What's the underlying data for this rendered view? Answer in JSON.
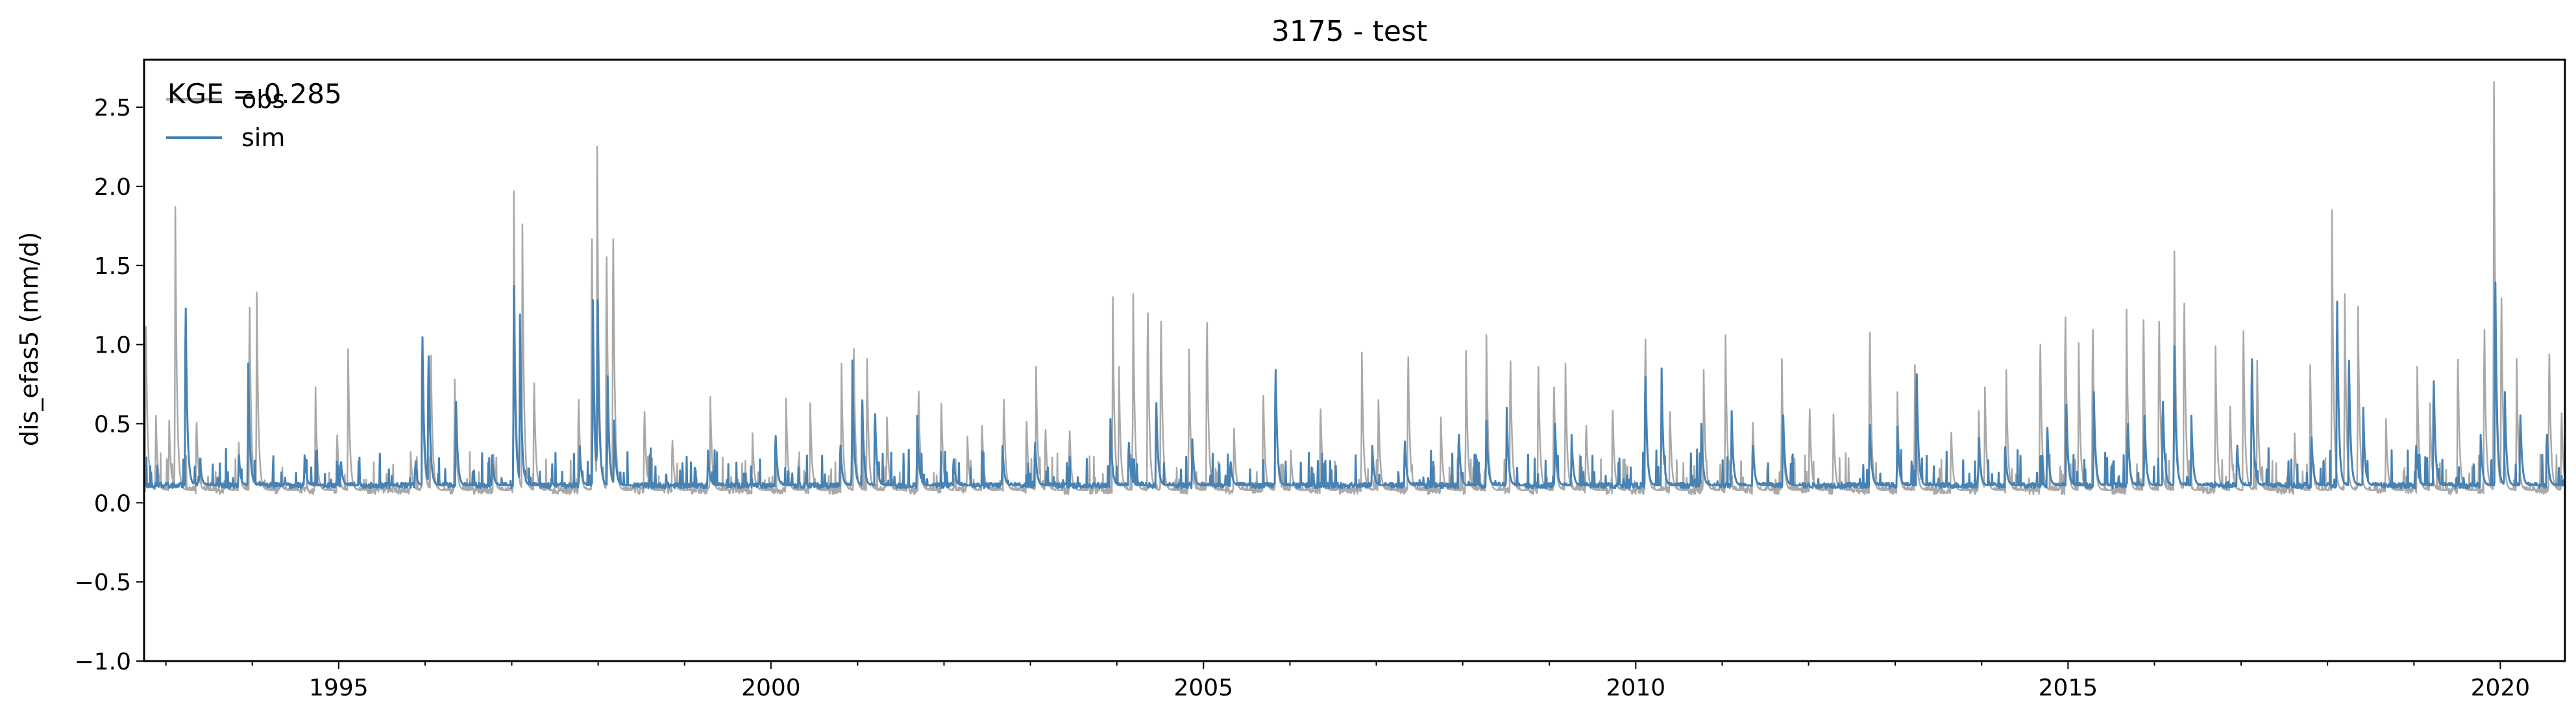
{
  "chart_data": {
    "type": "line",
    "title": "3175 - test",
    "xlabel": "",
    "ylabel": "dis_efas5 (mm/d)",
    "annotation": "KGE = 0.285",
    "xlim": [
      "1992-10-01",
      "2020-09-30"
    ],
    "ylim": [
      -1.0,
      2.8
    ],
    "x_ticks": [
      "1995",
      "2000",
      "2005",
      "2010",
      "2015",
      "2020"
    ],
    "y_ticks": [
      "−1.0",
      "−0.5",
      "0.0",
      "0.5",
      "1.0",
      "1.5",
      "2.0",
      "2.5"
    ],
    "y_tick_values": [
      -1.0,
      -0.5,
      0.0,
      0.5,
      1.0,
      1.5,
      2.0,
      2.5
    ],
    "grid": false,
    "legend": {
      "placement": "top-left",
      "entries": [
        "obs",
        "sim"
      ]
    },
    "series": [
      {
        "name": "obs",
        "color": "#a9a9a9",
        "baseline": 0.08,
        "peaks": [
          [
            "1992-10-08",
            1.27
          ],
          [
            "1992-11-20",
            0.55
          ],
          [
            "1993-01-15",
            0.52
          ],
          [
            "1993-02-10",
            1.87
          ],
          [
            "1993-05-10",
            0.57
          ],
          [
            "1993-09-05",
            0.15
          ],
          [
            "1993-11-05",
            0.38
          ],
          [
            "1993-12-20",
            1.41
          ],
          [
            "1994-01-20",
            1.33
          ],
          [
            "1994-05-01",
            0.14
          ],
          [
            "1994-09-25",
            0.73
          ],
          [
            "1994-12-25",
            0.48
          ],
          [
            "1995-02-10",
            0.97
          ],
          [
            "1995-11-01",
            0.32
          ],
          [
            "1995-12-20",
            0.96
          ],
          [
            "1996-01-25",
            1.06
          ],
          [
            "1996-05-05",
            0.78
          ],
          [
            "1996-10-15",
            0.34
          ],
          [
            "1997-01-10",
            1.97
          ],
          [
            "1997-02-15",
            1.76
          ],
          [
            "1997-04-05",
            0.86
          ],
          [
            "1997-10-10",
            0.74
          ],
          [
            "1997-12-05",
            1.91
          ],
          [
            "1997-12-28",
            2.25
          ],
          [
            "1998-02-05",
            1.78
          ],
          [
            "1998-03-05",
            1.91
          ],
          [
            "1998-07-15",
            0.65
          ],
          [
            "1998-11-10",
            0.44
          ],
          [
            "1999-04-20",
            0.67
          ],
          [
            "1999-10-15",
            0.44
          ],
          [
            "2000-03-05",
            0.66
          ],
          [
            "2000-06-15",
            0.63
          ],
          [
            "2000-10-25",
            0.88
          ],
          [
            "2000-12-15",
            1.11
          ],
          [
            "2001-02-10",
            0.91
          ],
          [
            "2001-05-05",
            0.54
          ],
          [
            "2001-09-15",
            0.8
          ],
          [
            "2001-12-20",
            0.71
          ],
          [
            "2002-04-10",
            0.42
          ],
          [
            "2002-06-10",
            0.55
          ],
          [
            "2002-09-10",
            0.74
          ],
          [
            "2002-12-15",
            0.58
          ],
          [
            "2003-01-25",
            0.86
          ],
          [
            "2003-03-05",
            0.52
          ],
          [
            "2003-06-15",
            0.51
          ],
          [
            "2003-12-15",
            1.3
          ],
          [
            "2004-01-10",
            0.86
          ],
          [
            "2004-03-10",
            1.32
          ],
          [
            "2004-05-10",
            1.37
          ],
          [
            "2004-07-05",
            1.31
          ],
          [
            "2004-11-01",
            0.97
          ],
          [
            "2005-01-15",
            1.3
          ],
          [
            "2005-05-10",
            0.47
          ],
          [
            "2005-09-10",
            0.77
          ],
          [
            "2005-11-01",
            0.96
          ],
          [
            "2006-01-05",
            0.33
          ],
          [
            "2006-05-10",
            0.67
          ],
          [
            "2006-11-01",
            0.95
          ],
          [
            "2007-01-10",
            0.65
          ],
          [
            "2007-05-15",
            1.05
          ],
          [
            "2007-10-01",
            0.54
          ],
          [
            "2008-01-15",
            0.96
          ],
          [
            "2008-04-10",
            1.06
          ],
          [
            "2008-07-20",
            1.02
          ],
          [
            "2008-11-15",
            0.98
          ],
          [
            "2009-01-20",
            0.83
          ],
          [
            "2009-03-10",
            0.88
          ],
          [
            "2009-06-05",
            0.55
          ],
          [
            "2009-09-25",
            0.66
          ],
          [
            "2010-02-10",
            1.18
          ],
          [
            "2010-05-25",
            0.65
          ],
          [
            "2010-10-15",
            0.84
          ],
          [
            "2011-01-15",
            1.06
          ],
          [
            "2011-05-10",
            0.57
          ],
          [
            "2011-09-10",
            0.91
          ],
          [
            "2012-01-05",
            0.67
          ],
          [
            "2012-04-15",
            0.56
          ],
          [
            "2012-09-15",
            1.23
          ],
          [
            "2013-01-10",
            0.7
          ],
          [
            "2013-03-25",
            0.87
          ],
          [
            "2013-08-25",
            0.5
          ],
          [
            "2013-12-20",
            0.58
          ],
          [
            "2014-01-15",
            0.73
          ],
          [
            "2014-04-15",
            0.84
          ],
          [
            "2014-09-05",
            1.14
          ],
          [
            "2014-12-20",
            1.34
          ],
          [
            "2015-02-15",
            1.01
          ],
          [
            "2015-04-15",
            1.25
          ],
          [
            "2015-09-05",
            1.22
          ],
          [
            "2015-11-15",
            1.32
          ],
          [
            "2016-01-20",
            1.31
          ],
          [
            "2016-03-25",
            1.59
          ],
          [
            "2016-05-05",
            1.44
          ],
          [
            "2016-09-15",
            0.99
          ],
          [
            "2016-11-15",
            0.69
          ],
          [
            "2017-01-10",
            1.24
          ],
          [
            "2017-03-10",
            0.9
          ],
          [
            "2017-08-15",
            0.44
          ],
          [
            "2017-10-20",
            0.87
          ],
          [
            "2018-01-20",
            1.85
          ],
          [
            "2018-03-15",
            1.32
          ],
          [
            "2018-05-10",
            1.24
          ],
          [
            "2018-09-05",
            0.53
          ],
          [
            "2019-01-15",
            0.86
          ],
          [
            "2019-03-10",
            0.63
          ],
          [
            "2019-07-05",
            1.03
          ],
          [
            "2019-10-25",
            1.25
          ],
          [
            "2019-12-05",
            2.66
          ],
          [
            "2020-01-05",
            1.48
          ],
          [
            "2020-03-10",
            0.91
          ],
          [
            "2020-07-25",
            1.07
          ],
          [
            "2020-09-15",
            0.64
          ]
        ]
      },
      {
        "name": "sim",
        "color": "#4682b4",
        "baseline": 0.11,
        "peaks": [
          [
            "1993-03-25",
            1.4
          ],
          [
            "1993-05-25",
            0.28
          ],
          [
            "1993-11-05",
            0.3
          ],
          [
            "1993-12-15",
            0.88
          ],
          [
            "1994-08-10",
            0.3
          ],
          [
            "1995-01-10",
            0.28
          ],
          [
            "1995-11-20",
            0.25
          ],
          [
            "1995-12-20",
            1.19
          ],
          [
            "1996-01-15",
            1.05
          ],
          [
            "1996-05-10",
            0.72
          ],
          [
            "1996-10-10",
            0.3
          ],
          [
            "1997-01-10",
            1.37
          ],
          [
            "1997-02-05",
            1.19
          ],
          [
            "1997-10-15",
            0.36
          ],
          [
            "1997-12-10",
            1.28
          ],
          [
            "1997-12-30",
            1.28
          ],
          [
            "1998-02-10",
            0.8
          ],
          [
            "1998-03-10",
            0.52
          ],
          [
            "1999-04-10",
            0.33
          ],
          [
            "2000-01-20",
            0.47
          ],
          [
            "2000-10-20",
            0.4
          ],
          [
            "2000-12-10",
            0.9
          ],
          [
            "2001-01-20",
            0.73
          ],
          [
            "2001-03-15",
            0.63
          ],
          [
            "2001-09-10",
            0.55
          ],
          [
            "2002-02-10",
            0.3
          ],
          [
            "2002-09-05",
            0.36
          ],
          [
            "2003-01-20",
            0.42
          ],
          [
            "2003-12-05",
            0.53
          ],
          [
            "2004-02-20",
            0.42
          ],
          [
            "2004-06-15",
            0.71
          ],
          [
            "2004-11-15",
            0.4
          ],
          [
            "2005-04-25",
            0.28
          ],
          [
            "2005-11-01",
            0.95
          ],
          [
            "2006-12-15",
            0.36
          ],
          [
            "2007-05-01",
            0.43
          ],
          [
            "2007-12-15",
            0.48
          ],
          [
            "2008-04-10",
            0.52
          ],
          [
            "2008-07-05",
            0.6
          ],
          [
            "2009-01-25",
            0.5
          ],
          [
            "2009-04-05",
            0.43
          ],
          [
            "2010-02-10",
            0.9
          ],
          [
            "2010-04-20",
            0.85
          ],
          [
            "2010-10-05",
            0.5
          ],
          [
            "2011-02-10",
            0.58
          ],
          [
            "2011-05-10",
            0.4
          ],
          [
            "2011-09-15",
            0.62
          ],
          [
            "2012-09-15",
            0.55
          ],
          [
            "2013-01-10",
            0.48
          ],
          [
            "2013-04-01",
            0.92
          ],
          [
            "2013-12-20",
            0.41
          ],
          [
            "2014-04-10",
            0.39
          ],
          [
            "2014-10-05",
            0.53
          ],
          [
            "2014-12-25",
            0.62
          ],
          [
            "2015-04-20",
            0.7
          ],
          [
            "2015-09-10",
            0.56
          ],
          [
            "2015-11-20",
            0.55
          ],
          [
            "2016-02-05",
            0.72
          ],
          [
            "2016-03-25",
            0.99
          ],
          [
            "2016-06-05",
            0.55
          ],
          [
            "2016-12-15",
            0.4
          ],
          [
            "2017-02-15",
            1.03
          ],
          [
            "2017-10-25",
            0.46
          ],
          [
            "2018-02-10",
            1.45
          ],
          [
            "2018-04-01",
            1.02
          ],
          [
            "2018-06-01",
            0.6
          ],
          [
            "2019-01-10",
            0.4
          ],
          [
            "2019-03-25",
            0.87
          ],
          [
            "2019-10-10",
            0.43
          ],
          [
            "2019-12-10",
            1.59
          ],
          [
            "2020-01-20",
            0.7
          ],
          [
            "2020-03-25",
            0.62
          ],
          [
            "2020-07-15",
            0.48
          ],
          [
            "2020-09-25",
            0.15
          ]
        ]
      }
    ]
  }
}
